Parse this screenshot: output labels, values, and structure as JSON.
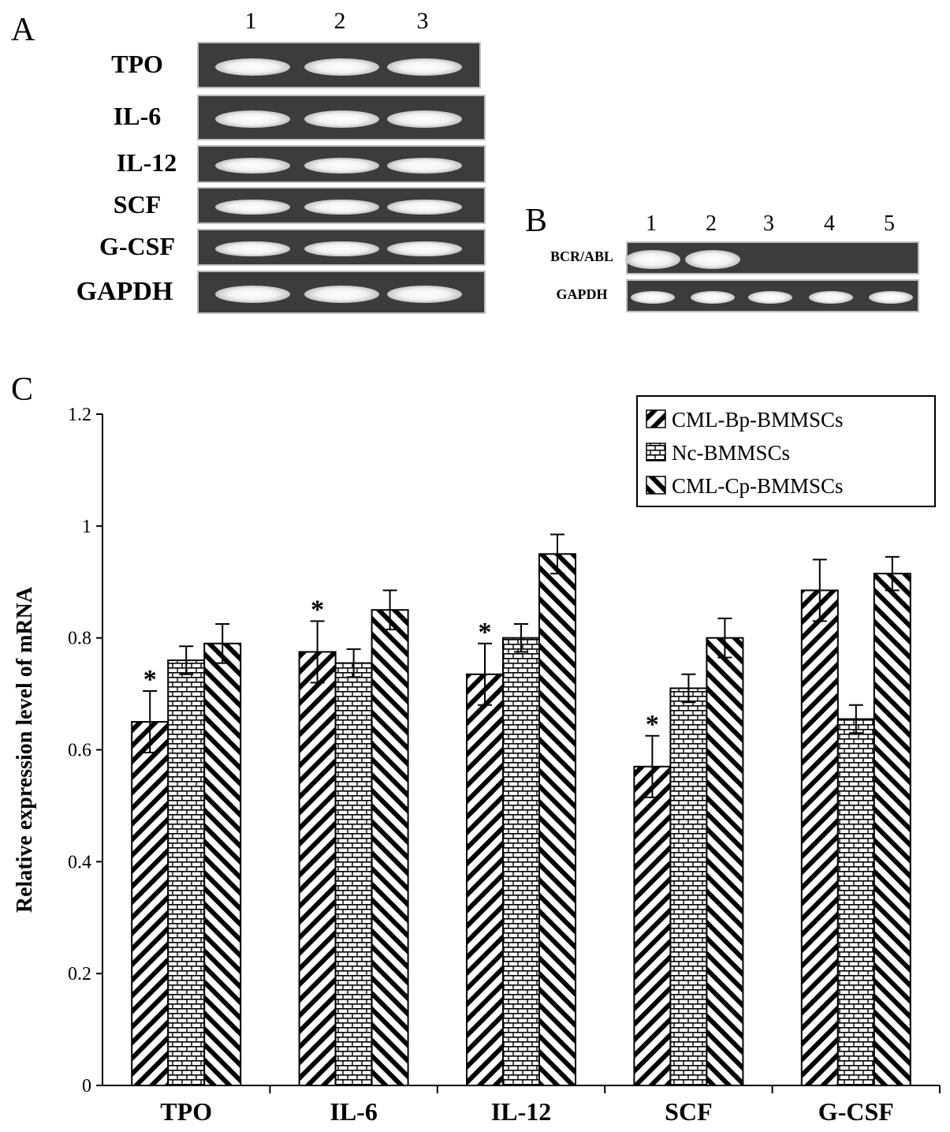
{
  "panel_a": {
    "letter": "A",
    "lanes": [
      "1",
      "2",
      "3"
    ],
    "rows": [
      "TPO",
      "IL-6",
      "IL-12",
      "SCF",
      "G-CSF",
      "GAPDH"
    ]
  },
  "panel_b": {
    "letter": "B",
    "lanes": [
      "1",
      "2",
      "3",
      "4",
      "5"
    ],
    "rows": [
      "BCR/ABL",
      "GAPDH"
    ],
    "bcr_abl_present": [
      true,
      true,
      false,
      false,
      false
    ]
  },
  "panel_c": {
    "letter": "C"
  },
  "chart_data": {
    "type": "bar",
    "title": "",
    "xlabel": "",
    "ylabel": "Relative expression level of mRNA",
    "ylim": [
      0,
      1.2
    ],
    "yticks": [
      "0",
      "0.2",
      "0.4",
      "0.6",
      "0.8",
      "1",
      "1.2"
    ],
    "ytick_values": [
      0,
      0.2,
      0.4,
      0.6,
      0.8,
      1.0,
      1.2
    ],
    "categories": [
      "TPO",
      "IL-6",
      "IL-12",
      "SCF",
      "G-CSF"
    ],
    "series": [
      {
        "name": "CML-Bp-BMMSCs",
        "pattern": "diagonal-up",
        "values": [
          0.65,
          0.775,
          0.735,
          0.57,
          0.885
        ],
        "errors": [
          0.055,
          0.055,
          0.055,
          0.055,
          0.055
        ]
      },
      {
        "name": "Nc-BMMSCs",
        "pattern": "brick",
        "values": [
          0.76,
          0.755,
          0.8,
          0.71,
          0.655
        ],
        "errors": [
          0.025,
          0.025,
          0.025,
          0.025,
          0.025
        ]
      },
      {
        "name": "CML-Cp-BMMSCs",
        "pattern": "diagonal-down",
        "values": [
          0.79,
          0.85,
          0.95,
          0.8,
          0.915
        ],
        "errors": [
          0.035,
          0.035,
          0.035,
          0.035,
          0.03
        ]
      }
    ],
    "significance_marker": "*",
    "significant": [
      [
        true,
        false,
        false
      ],
      [
        true,
        false,
        false
      ],
      [
        true,
        false,
        false
      ],
      [
        true,
        false,
        false
      ],
      [
        false,
        false,
        false
      ]
    ],
    "legend_position": "top-right",
    "grid": false
  }
}
